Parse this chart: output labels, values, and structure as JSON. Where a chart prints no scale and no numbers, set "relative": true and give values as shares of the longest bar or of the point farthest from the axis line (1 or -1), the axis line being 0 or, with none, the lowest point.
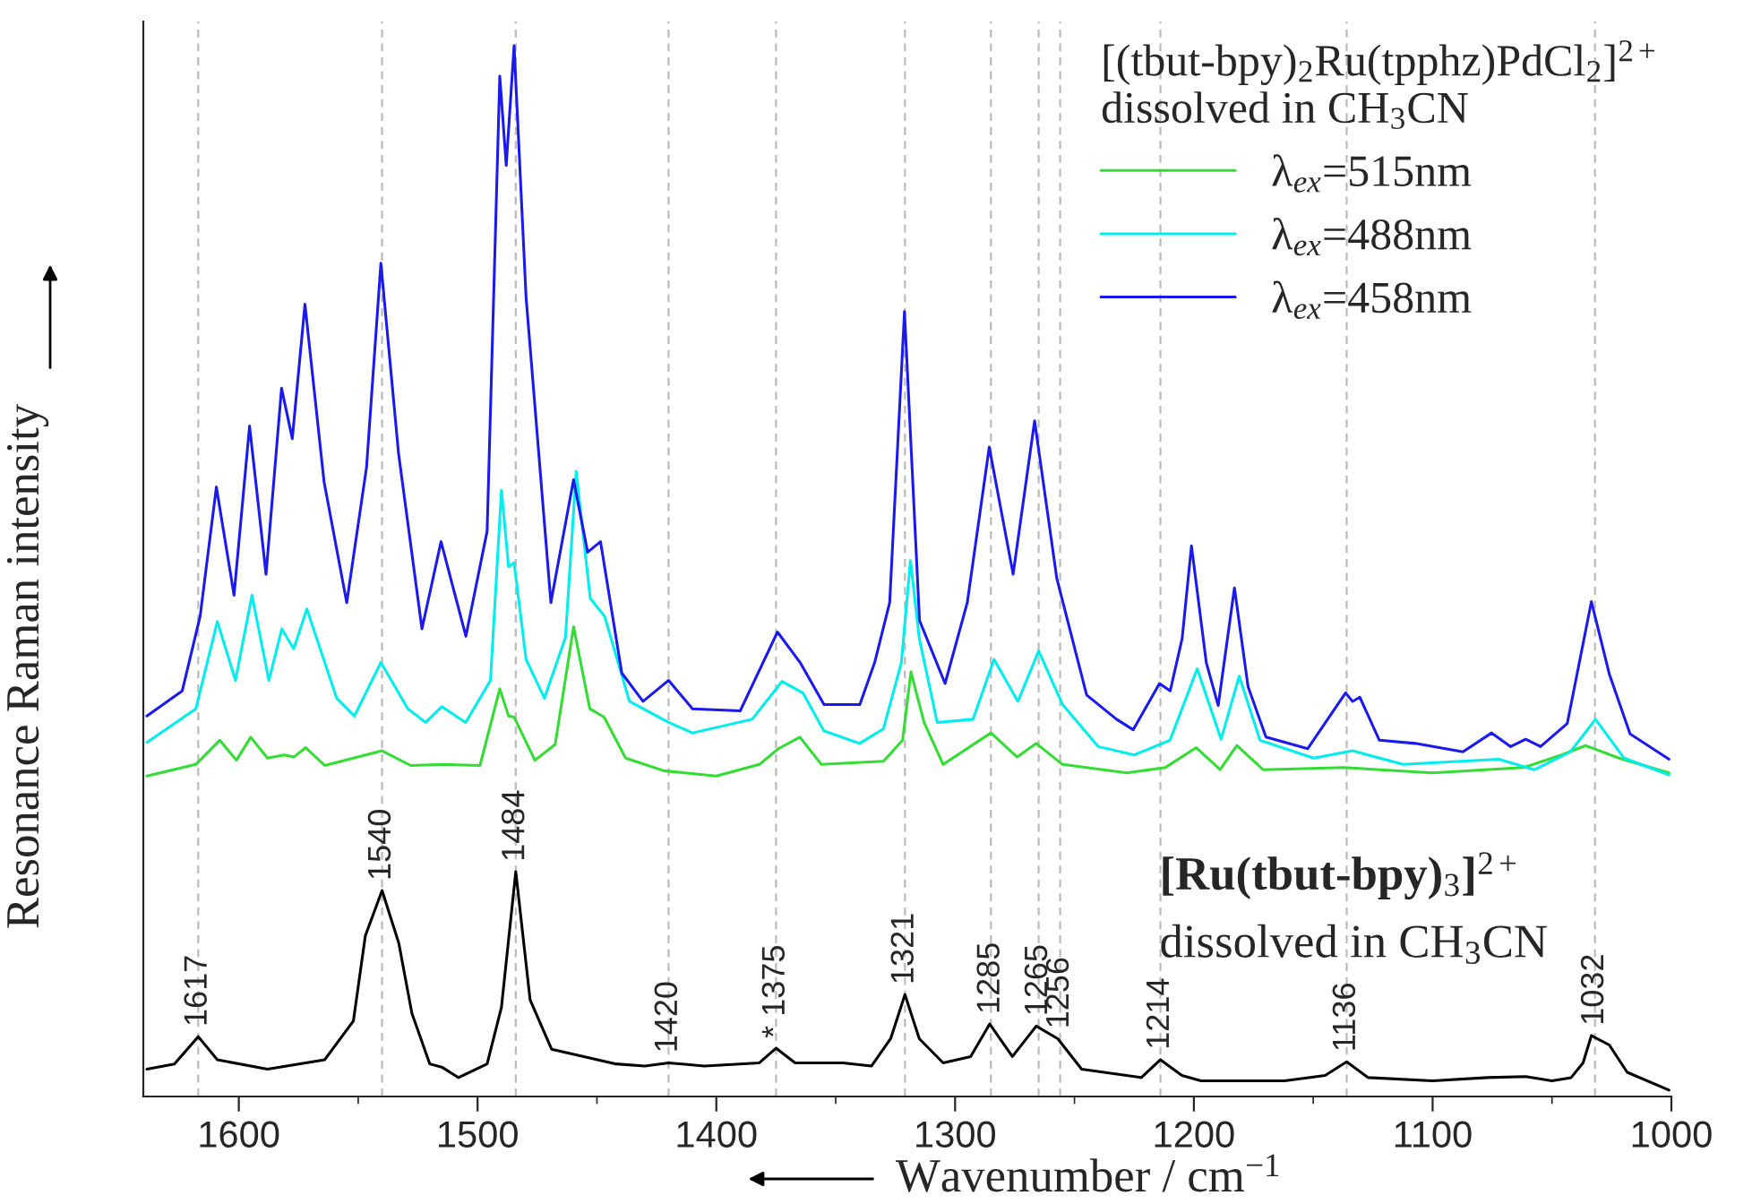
{
  "chart_data": {
    "type": "line",
    "relative": true,
    "xlabel": "Wavenumber / cm$^{−1}$",
    "ylabel": "Resonance Raman intensity",
    "legend_title": "[(tbut-bpy)$_{2}$Ru(tpphz)PdCl$_{2}$]$^{2+}$\ndissolved in CH$_{3}$CN",
    "xlim": [
      1640,
      1000
    ],
    "xticks": [
      1600,
      {
        "value": 1550,
        "label": null
      },
      1500,
      {
        "value": 1450,
        "label": null
      },
      1400,
      {
        "value": 1350,
        "label": null
      },
      1300,
      {
        "value": 1250,
        "label": null
      },
      1200,
      {
        "value": 1150,
        "label": null
      },
      1100,
      {
        "value": 1050,
        "label": null
      },
      1000
    ],
    "tick_labels": "x",
    "grid": false,
    "legend": "top right",
    "series": [
      {
        "color": "#000000",
        "x": [
          1638.5,
          1627,
          1617,
          1609,
          1588,
          1564,
          1552,
          1547,
          1540,
          1533,
          1527.5,
          1520,
          1515,
          1508,
          1496,
          1490,
          1484,
          1478,
          1469,
          1442,
          1430,
          1420,
          1405,
          1382,
          1375,
          1367,
          1357,
          1347,
          1335,
          1327,
          1321,
          1315,
          1305,
          1293.5,
          1285.5,
          1276,
          1266,
          1257,
          1247,
          1222,
          1214,
          1205,
          1197,
          1162,
          1145,
          1136,
          1127,
          1100,
          1077,
          1061,
          1050,
          1042,
          1037,
          1033.5,
          1026,
          1018.5,
          1001
        ],
        "values": [
          0.026,
          0.031,
          0.057,
          0.035,
          0.026,
          0.035,
          0.072,
          0.153,
          0.196,
          0.146,
          0.079,
          0.031,
          0.028,
          0.018,
          0.031,
          0.085,
          0.214,
          0.092,
          0.045,
          0.031,
          0.029,
          0.032,
          0.029,
          0.032,
          0.046,
          0.032,
          0.032,
          0.032,
          0.029,
          0.055,
          0.097,
          0.055,
          0.032,
          0.038,
          0.069,
          0.038,
          0.067,
          0.055,
          0.026,
          0.018,
          0.035,
          0.02,
          0.015,
          0.015,
          0.02,
          0.033,
          0.018,
          0.015,
          0.018,
          0.019,
          0.015,
          0.018,
          0.032,
          0.058,
          0.049,
          0.023,
          0.006
        ]
      },
      {
        "name": "λ$_{ex}$=515nm",
        "color": "#33dd33",
        "x": [
          1638.5,
          1618,
          1608,
          1601,
          1595,
          1588,
          1581,
          1577,
          1572,
          1564,
          1540,
          1528,
          1514,
          1499,
          1490.7,
          1487,
          1484.7,
          1476,
          1467.5,
          1459.8,
          1453,
          1447,
          1438,
          1422,
          1400,
          1382,
          1374,
          1365,
          1356,
          1330,
          1322,
          1318.5,
          1313,
          1305,
          1285,
          1274,
          1266,
          1255,
          1228,
          1212,
          1199,
          1189,
          1182,
          1171,
          1137,
          1100,
          1062,
          1046,
          1036,
          1022,
          1001
        ],
        "values": [
          0.305,
          0.316,
          0.339,
          0.32,
          0.342,
          0.322,
          0.325,
          0.323,
          0.332,
          0.315,
          0.329,
          0.315,
          0.316,
          0.315,
          0.388,
          0.362,
          0.361,
          0.32,
          0.335,
          0.447,
          0.369,
          0.361,
          0.322,
          0.31,
          0.305,
          0.316,
          0.331,
          0.342,
          0.316,
          0.319,
          0.339,
          0.404,
          0.356,
          0.316,
          0.346,
          0.323,
          0.336,
          0.316,
          0.308,
          0.313,
          0.332,
          0.311,
          0.334,
          0.311,
          0.313,
          0.308,
          0.313,
          0.325,
          0.334,
          0.322,
          0.308
        ]
      },
      {
        "name": "λ$_{ex}$=488nm",
        "color": "#00eeee",
        "x": [
          1638.5,
          1618,
          1609,
          1601.4,
          1594.5,
          1587.4,
          1582,
          1577,
          1571.5,
          1559,
          1551.6,
          1540.5,
          1529.2,
          1521.8,
          1515,
          1505,
          1494.6,
          1490,
          1487,
          1484.7,
          1479.7,
          1472,
          1463.2,
          1458.7,
          1452.8,
          1446.8,
          1436.4,
          1420,
          1410,
          1385,
          1372.5,
          1363.7,
          1355,
          1340,
          1330,
          1322.5,
          1318.7,
          1315,
          1307.5,
          1292.5,
          1283.7,
          1273.7,
          1265,
          1255,
          1240,
          1225,
          1210,
          1198.6,
          1188.6,
          1181,
          1172.3,
          1149.8,
          1133.5,
          1112.3,
          1072.3,
          1057.3,
          1042.3,
          1031.8,
          1019.8,
          1001
        ],
        "values": [
          0.337,
          0.369,
          0.452,
          0.396,
          0.477,
          0.396,
          0.445,
          0.426,
          0.464,
          0.379,
          0.362,
          0.413,
          0.369,
          0.356,
          0.371,
          0.356,
          0.396,
          0.577,
          0.504,
          0.508,
          0.416,
          0.379,
          0.437,
          0.595,
          0.474,
          0.457,
          0.376,
          0.356,
          0.346,
          0.359,
          0.395,
          0.384,
          0.348,
          0.336,
          0.35,
          0.413,
          0.51,
          0.436,
          0.356,
          0.359,
          0.416,
          0.376,
          0.424,
          0.373,
          0.333,
          0.325,
          0.339,
          0.407,
          0.34,
          0.4,
          0.339,
          0.322,
          0.329,
          0.316,
          0.321,
          0.311,
          0.328,
          0.359,
          0.322,
          0.306
        ]
      },
      {
        "name": "λ$_{ex}$=458nm",
        "color": "#1a1aee",
        "x": [
          1638.5,
          1623.7,
          1616.2,
          1609.4,
          1602,
          1595.5,
          1588.6,
          1582.1,
          1577.6,
          1572.3,
          1564.3,
          1554.8,
          1546.5,
          1540.5,
          1533.1,
          1523.3,
          1515.3,
          1504.9,
          1496,
          1490.7,
          1488,
          1484.7,
          1479.7,
          1469.3,
          1459.8,
          1453.9,
          1448.5,
          1439.6,
          1430.7,
          1420,
          1410,
          1390,
          1374.4,
          1364.9,
          1354.9,
          1339.9,
          1333.7,
          1327.4,
          1321.2,
          1314.9,
          1304.2,
          1294.9,
          1285.7,
          1275.7,
          1266.7,
          1257.4,
          1244.9,
          1232.4,
          1225.4,
          1214.4,
          1209.9,
          1204.9,
          1201,
          1194.8,
          1189.8,
          1183,
          1177.3,
          1169.8,
          1152.3,
          1136.5,
          1133.5,
          1130.5,
          1122.3,
          1107.3,
          1087.3,
          1075.3,
          1067.3,
          1061,
          1054.8,
          1043.6,
          1033.5,
          1026,
          1017.3,
          1001
        ],
        "values": [
          0.362,
          0.386,
          0.457,
          0.58,
          0.477,
          0.638,
          0.497,
          0.674,
          0.626,
          0.754,
          0.585,
          0.47,
          0.599,
          0.793,
          0.612,
          0.445,
          0.528,
          0.438,
          0.538,
          0.971,
          0.886,
          1.0,
          0.761,
          0.47,
          0.587,
          0.518,
          0.528,
          0.403,
          0.376,
          0.396,
          0.369,
          0.367,
          0.442,
          0.413,
          0.373,
          0.373,
          0.413,
          0.47,
          0.747,
          0.453,
          0.393,
          0.47,
          0.618,
          0.497,
          0.643,
          0.493,
          0.382,
          0.359,
          0.349,
          0.393,
          0.386,
          0.436,
          0.524,
          0.413,
          0.372,
          0.484,
          0.39,
          0.342,
          0.331,
          0.384,
          0.376,
          0.38,
          0.339,
          0.336,
          0.328,
          0.346,
          0.333,
          0.34,
          0.333,
          0.355,
          0.471,
          0.402,
          0.345,
          0.321
        ]
      }
    ],
    "ref_lines": [
      {
        "axis": "x",
        "value": 1617,
        "color": "#bbbbbb",
        "line_style": "dashed"
      },
      {
        "axis": "x",
        "value": 1540,
        "color": "#bbbbbb",
        "line_style": "dashed"
      },
      {
        "axis": "x",
        "value": 1484,
        "color": "#bbbbbb",
        "line_style": "dashed"
      },
      {
        "axis": "x",
        "value": 1420,
        "color": "#bbbbbb",
        "line_style": "dashed"
      },
      {
        "axis": "x",
        "value": 1375,
        "color": "#bbbbbb",
        "line_style": "dashed"
      },
      {
        "axis": "x",
        "value": 1321,
        "color": "#bbbbbb",
        "line_style": "dashed"
      },
      {
        "axis": "x",
        "value": 1285,
        "color": "#bbbbbb",
        "line_style": "dashed"
      },
      {
        "axis": "x",
        "value": 1265,
        "color": "#bbbbbb",
        "line_style": "dashed"
      },
      {
        "axis": "x",
        "value": 1256,
        "color": "#bbbbbb",
        "line_style": "dashed"
      },
      {
        "axis": "x",
        "value": 1214,
        "color": "#bbbbbb",
        "line_style": "dashed"
      },
      {
        "axis": "x",
        "value": 1136,
        "color": "#bbbbbb",
        "line_style": "dashed"
      },
      {
        "axis": "x",
        "value": 1032,
        "color": "#bbbbbb",
        "line_style": "dashed"
      }
    ],
    "annotations": [
      "[Ru(tbut-bpy)$_{3}$]$^{2+}$",
      "dissolved in CH$_{3}$CN",
      {
        "text": "1617",
        "x": 1617,
        "y": 0.057
      },
      {
        "text": "1540",
        "x": 1540,
        "y": 0.196
      },
      {
        "text": "1484",
        "x": 1484,
        "y": 0.214
      },
      {
        "text": "1420",
        "x": 1420,
        "y": 0.032
      },
      {
        "text": "* 1375",
        "x": 1375,
        "y": 0.046
      },
      {
        "text": "1321",
        "x": 1321,
        "y": 0.097
      },
      {
        "text": "1285",
        "x": 1285,
        "y": 0.069
      },
      {
        "text": "1265",
        "x": 1265,
        "y": 0.067
      },
      {
        "text": "1256",
        "x": 1256,
        "y": 0.055
      },
      {
        "text": "1214",
        "x": 1214,
        "y": 0.035
      },
      {
        "text": "1136",
        "x": 1136,
        "y": 0.033
      },
      {
        "text": "1032",
        "x": 1032,
        "y": 0.058
      }
    ]
  }
}
